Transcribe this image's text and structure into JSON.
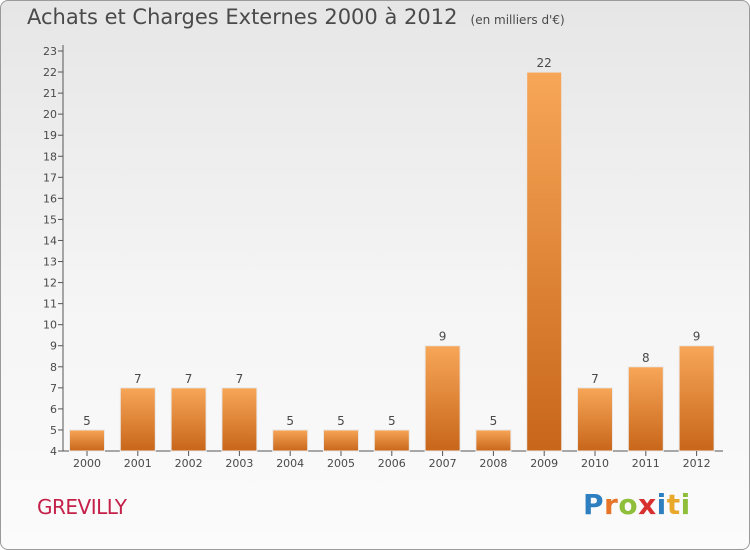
{
  "header": {
    "title": "Achats et Charges Externes 2000 à 2012",
    "unit": "(en milliers d'€)"
  },
  "footer": {
    "commune": "GREVILLY",
    "logo": {
      "letters": [
        "P",
        "r",
        "o",
        "x",
        "i",
        "t",
        "i"
      ],
      "colors": [
        "#2e7fc0",
        "#e8742a",
        "#8fbf3a",
        "#d8302e",
        "#2e7fc0",
        "#e8a82a",
        "#8fbf3a"
      ]
    }
  },
  "colors": {
    "bar_top": "#f7a658",
    "bar_bottom": "#c8661a",
    "axis": "#555555",
    "text": "#4a4a4a",
    "commune": "#c4204a"
  },
  "chart_data": {
    "type": "bar",
    "categories": [
      "2000",
      "2001",
      "2002",
      "2003",
      "2004",
      "2005",
      "2006",
      "2007",
      "2008",
      "2009",
      "2010",
      "2011",
      "2012"
    ],
    "values": [
      5,
      7,
      7,
      7,
      5,
      5,
      5,
      9,
      5,
      22,
      7,
      8,
      9
    ],
    "ylim": [
      4,
      23
    ],
    "yticks": [
      4,
      5,
      6,
      7,
      8,
      9,
      10,
      11,
      12,
      13,
      14,
      15,
      16,
      17,
      18,
      19,
      20,
      21,
      22,
      23
    ],
    "ytick_labels": [
      "4",
      "5",
      "6",
      "7",
      "8",
      "9",
      "10",
      "11",
      "12",
      "13",
      "14",
      "15",
      "16",
      "17",
      "18",
      "19",
      "20",
      "21",
      "22",
      "23"
    ],
    "data_labels": [
      "5",
      "7",
      "7",
      "7",
      "5",
      "5",
      "5",
      "9",
      "5",
      "22",
      "7",
      "8",
      "9"
    ],
    "grid": false
  }
}
